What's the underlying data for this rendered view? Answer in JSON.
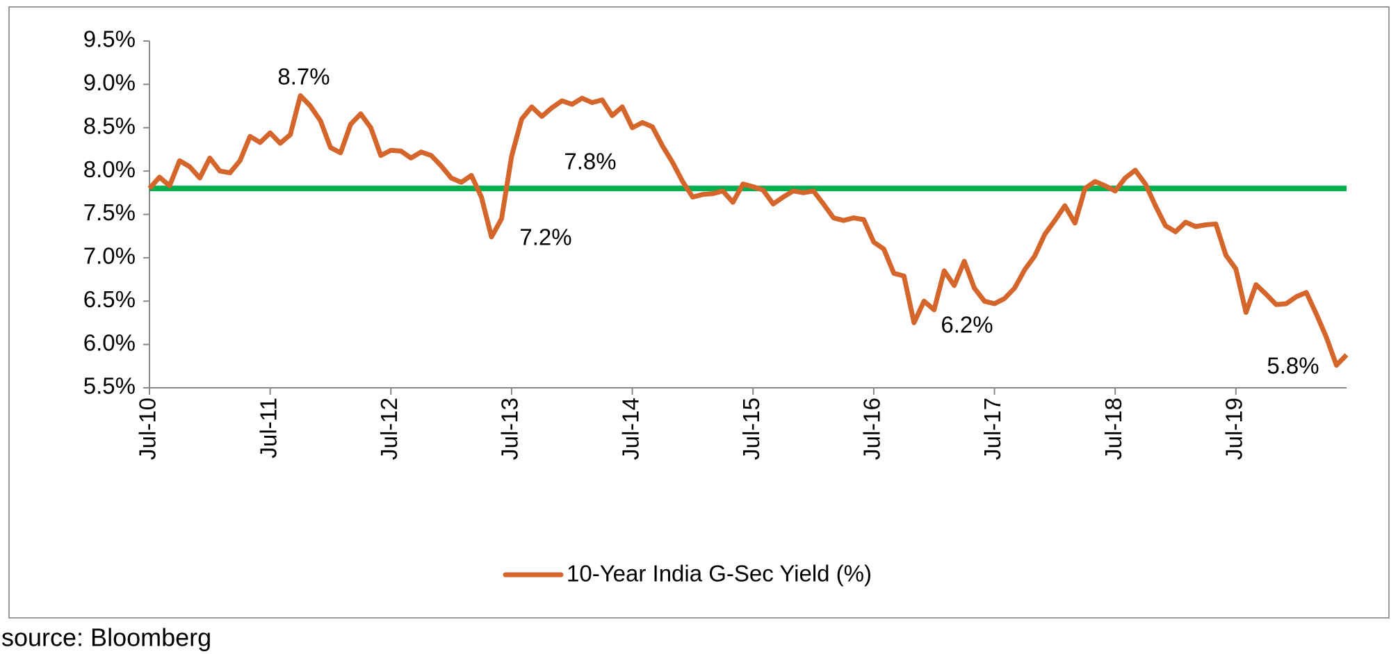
{
  "chart_data": {
    "type": "line",
    "categories": [
      "Jul-10",
      null,
      null,
      null,
      null,
      null,
      null,
      null,
      null,
      null,
      null,
      null,
      "Jul-11",
      null,
      null,
      null,
      null,
      null,
      null,
      null,
      null,
      null,
      null,
      null,
      "Jul-12",
      null,
      null,
      null,
      null,
      null,
      null,
      null,
      null,
      null,
      null,
      null,
      "Jul-13",
      null,
      null,
      null,
      null,
      null,
      null,
      null,
      null,
      null,
      null,
      null,
      "Jul-14",
      null,
      null,
      null,
      null,
      null,
      null,
      null,
      null,
      null,
      null,
      null,
      "Jul-15",
      null,
      null,
      null,
      null,
      null,
      null,
      null,
      null,
      null,
      null,
      null,
      "Jul-16",
      null,
      null,
      null,
      null,
      null,
      null,
      null,
      null,
      null,
      null,
      null,
      "Jul-17",
      null,
      null,
      null,
      null,
      null,
      null,
      null,
      null,
      null,
      null,
      null,
      "Jul-18",
      null,
      null,
      null,
      null,
      null,
      null,
      null,
      null,
      null,
      null,
      null,
      "Jul-19",
      null,
      null,
      null,
      null,
      null,
      null,
      null,
      null,
      null,
      null,
      null
    ],
    "series": [
      {
        "name": "10-Year India G-Sec Yield (%)",
        "color": "#d4652b",
        "values": [
          7.8,
          7.93,
          7.83,
          8.12,
          8.05,
          7.92,
          8.15,
          8.0,
          7.98,
          8.12,
          8.4,
          8.33,
          8.44,
          8.32,
          8.42,
          8.87,
          8.75,
          8.58,
          8.27,
          8.21,
          8.54,
          8.66,
          8.5,
          8.18,
          8.24,
          8.23,
          8.15,
          8.22,
          8.18,
          8.06,
          7.92,
          7.87,
          7.95,
          7.7,
          7.24,
          7.45,
          8.17,
          8.6,
          8.74,
          8.63,
          8.73,
          8.81,
          8.77,
          8.84,
          8.79,
          8.82,
          8.64,
          8.74,
          8.5,
          8.56,
          8.51,
          8.29,
          8.1,
          7.88,
          7.7,
          7.73,
          7.74,
          7.77,
          7.64,
          7.85,
          7.82,
          7.78,
          7.62,
          7.7,
          7.77,
          7.75,
          7.77,
          7.62,
          7.46,
          7.43,
          7.46,
          7.44,
          7.18,
          7.1,
          6.82,
          6.79,
          6.25,
          6.5,
          6.4,
          6.85,
          6.68,
          6.96,
          6.65,
          6.5,
          6.47,
          6.53,
          6.65,
          6.86,
          7.02,
          7.27,
          7.43,
          7.6,
          7.4,
          7.8,
          7.88,
          7.83,
          7.77,
          7.92,
          8.01,
          7.85,
          7.6,
          7.37,
          7.3,
          7.41,
          7.36,
          7.38,
          7.39,
          7.03,
          6.87,
          6.37,
          6.69,
          6.58,
          6.46,
          6.47,
          6.55,
          6.6,
          6.35,
          6.08,
          5.76,
          5.88
        ]
      }
    ],
    "reference_line": {
      "value": 7.8,
      "label": "7.8%",
      "color": "#00b050"
    },
    "annotations": [
      "8.7%",
      "7.2%",
      "6.2%",
      "5.8%"
    ],
    "ylim": [
      5.5,
      9.5
    ],
    "yticks": [
      {
        "value": 5.5,
        "label": "5.5%"
      },
      {
        "value": 6,
        "label": "6.0%"
      },
      {
        "value": 6.5,
        "label": "6.5%"
      },
      {
        "value": 7,
        "label": "7.0%"
      },
      {
        "value": 7.5,
        "label": "7.5%"
      },
      {
        "value": 8,
        "label": "8.0%"
      },
      {
        "value": 8.5,
        "label": "8.5%"
      },
      {
        "value": 9,
        "label": "9.0%"
      },
      {
        "value": 9.5,
        "label": "9.5%"
      }
    ],
    "legend": "bottom",
    "source": "source: Bloomberg"
  }
}
